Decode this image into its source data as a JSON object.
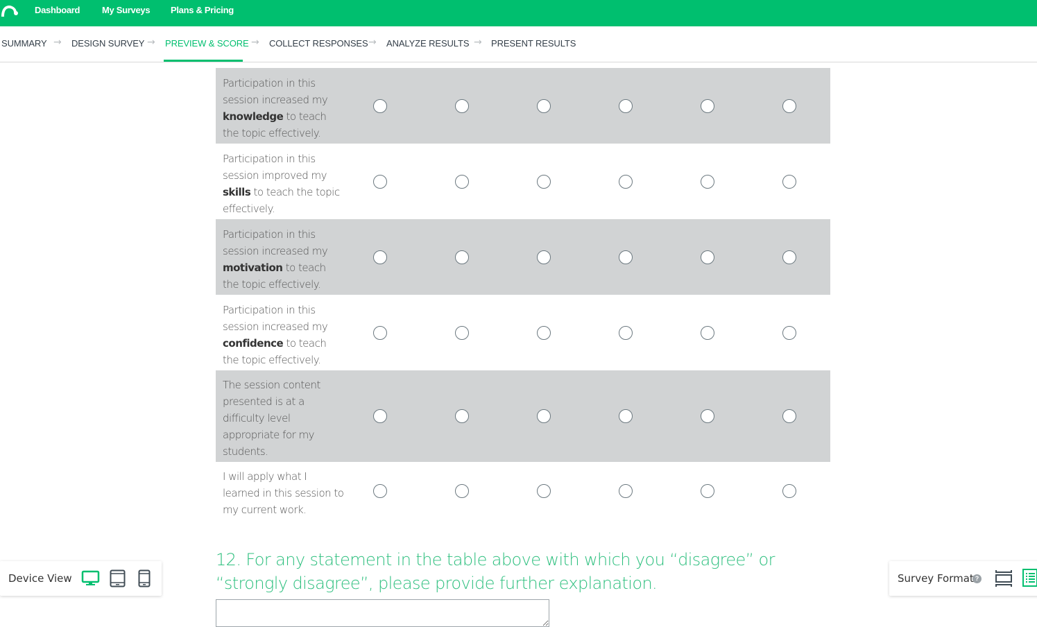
{
  "topbar": {
    "brand_color": "#00bf6f",
    "nav": [
      "Dashboard",
      "My Surveys",
      "Plans & Pricing"
    ]
  },
  "steps": [
    {
      "label": "SUMMARY",
      "active": false
    },
    {
      "label": "DESIGN SURVEY",
      "active": false
    },
    {
      "label": "PREVIEW & SCORE",
      "active": true
    },
    {
      "label": "COLLECT RESPONSES",
      "active": false
    },
    {
      "label": "ANALYZE RESULTS",
      "active": false
    },
    {
      "label": "PRESENT RESULTS",
      "active": false
    }
  ],
  "matrix": {
    "columns_count": 6,
    "rows": [
      {
        "before": "Participation in this session increased my ",
        "bold": "knowledge",
        "after": " to teach the topic effectively."
      },
      {
        "before": "Participation in this session improved my ",
        "bold": "skills",
        "after": " to teach the topic effectively."
      },
      {
        "before": "Participation in this session increased my ",
        "bold": "motivation",
        "after": " to teach the topic effectively."
      },
      {
        "before": "Participation in this session increased my ",
        "bold": "confidence",
        "after": " to teach the topic effectively."
      },
      {
        "before": "The session content presented is at a difficulty level appropriate for my students.",
        "bold": "",
        "after": ""
      },
      {
        "before": "I will apply what I learned in this session to my current work.",
        "bold": "",
        "after": ""
      }
    ]
  },
  "question12": {
    "text": "12. For any statement in the table above with which you “disagree” or “strongly disagree”, please provide further explanation.",
    "answer": ""
  },
  "device_view": {
    "label": "Device View",
    "options": [
      "desktop-icon",
      "tablet-icon",
      "phone-icon"
    ],
    "selected": "desktop"
  },
  "survey_format": {
    "label": "Survey Format",
    "help": "?",
    "options": [
      "one-question-at-a-time-icon",
      "classic-list-icon"
    ],
    "selected": "classic"
  }
}
